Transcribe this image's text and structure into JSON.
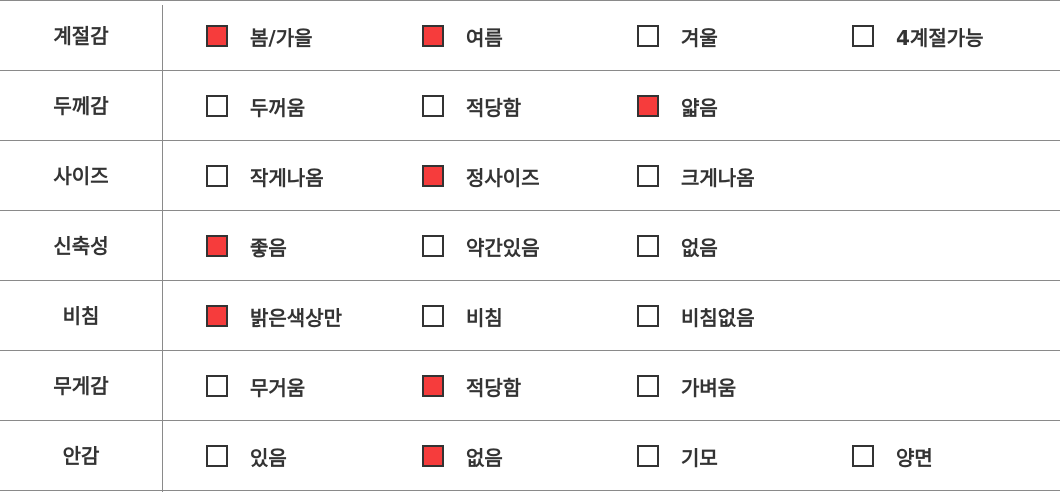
{
  "colors": {
    "checked": "#f63c3c",
    "border": "#333333",
    "line": "#8a8a8a"
  },
  "rows": [
    {
      "label": "계절감",
      "options": [
        {
          "text": "봄/가을",
          "checked": true
        },
        {
          "text": "여름",
          "checked": true
        },
        {
          "text": "겨울",
          "checked": false
        },
        {
          "text": "4계절가능",
          "checked": false
        }
      ]
    },
    {
      "label": "두께감",
      "options": [
        {
          "text": "두꺼움",
          "checked": false
        },
        {
          "text": "적당함",
          "checked": false
        },
        {
          "text": "얇음",
          "checked": true
        }
      ]
    },
    {
      "label": "사이즈",
      "options": [
        {
          "text": "작게나옴",
          "checked": false
        },
        {
          "text": "정사이즈",
          "checked": true
        },
        {
          "text": "크게나옴",
          "checked": false
        }
      ]
    },
    {
      "label": "신축성",
      "options": [
        {
          "text": "좋음",
          "checked": true
        },
        {
          "text": "약간있음",
          "checked": false
        },
        {
          "text": "없음",
          "checked": false
        }
      ]
    },
    {
      "label": "비침",
      "options": [
        {
          "text": "밝은색상만",
          "checked": true
        },
        {
          "text": "비침",
          "checked": false
        },
        {
          "text": "비침없음",
          "checked": false
        }
      ]
    },
    {
      "label": "무게감",
      "options": [
        {
          "text": "무거움",
          "checked": false
        },
        {
          "text": "적당함",
          "checked": true
        },
        {
          "text": "가벼움",
          "checked": false
        }
      ]
    },
    {
      "label": "안감",
      "options": [
        {
          "text": "있음",
          "checked": false
        },
        {
          "text": "없음",
          "checked": true
        },
        {
          "text": "기모",
          "checked": false
        },
        {
          "text": "양면",
          "checked": false
        }
      ]
    }
  ]
}
